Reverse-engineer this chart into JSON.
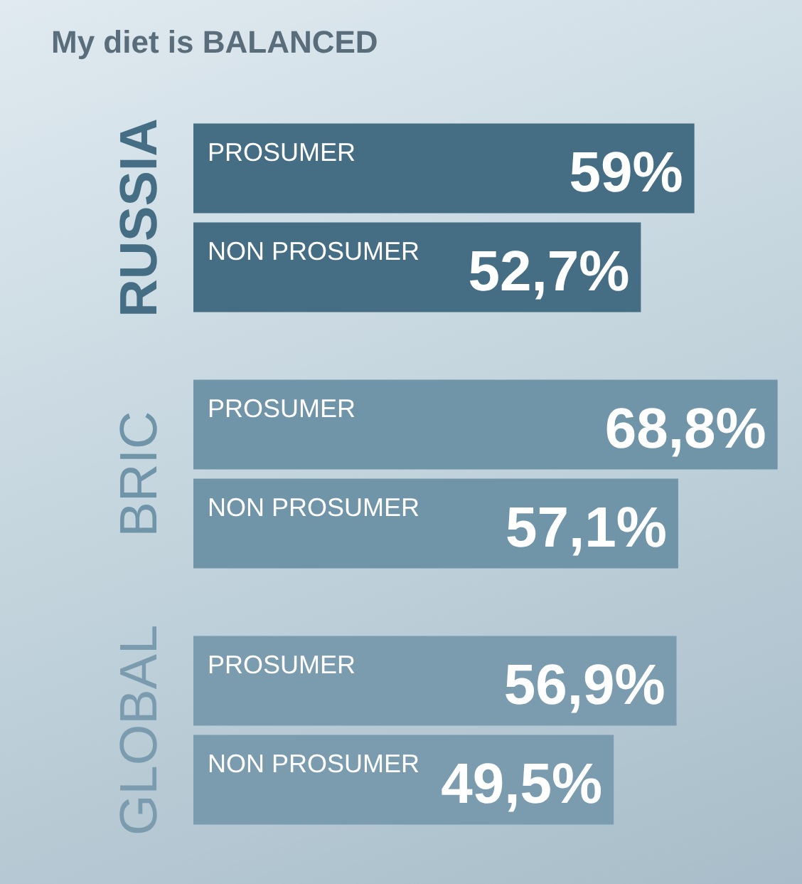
{
  "chart_data": {
    "type": "bar",
    "orientation": "horizontal",
    "title": "My diet is BALANCED",
    "categories": [
      "RUSSIA",
      "BRIC",
      "GLOBAL"
    ],
    "series": [
      {
        "name": "PROSUMER",
        "colors": [
          "#456e85",
          "#7094a8",
          "#7b9caf"
        ],
        "values": [
          59,
          68.8,
          56.9
        ],
        "value_labels": [
          "59%",
          "68,8%",
          "56,9%"
        ]
      },
      {
        "name": "NON PROSUMER",
        "colors": [
          "#456e85",
          "#7094a8",
          "#7b9caf"
        ],
        "values": [
          52.7,
          57.1,
          49.5
        ],
        "value_labels": [
          "52,7%",
          "57,1%",
          "49,5%"
        ]
      }
    ],
    "tick_labels": "y"
  }
}
